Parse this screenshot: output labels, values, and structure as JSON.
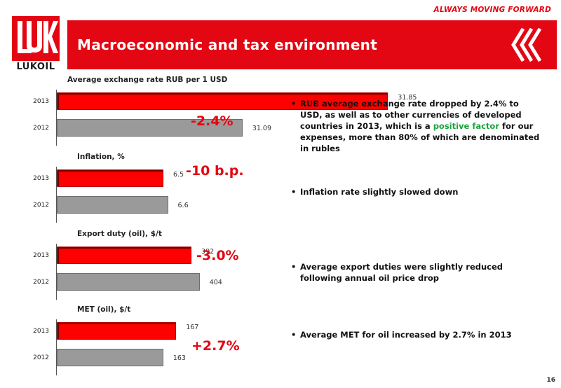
{
  "tagline": "ALWAYS MOVING FORWARD",
  "logo_text": "LUKOIL",
  "title": "Macroeconomic and tax environment",
  "page_number": "16",
  "colors": {
    "brand_red": "#e30613",
    "bar_2013": "#ff0000",
    "bar_2012": "#9a9a9a",
    "highlight_green": "#1aa33a"
  },
  "chart_data": [
    {
      "type": "bar",
      "orientation": "horizontal",
      "title": "Average exchange rate RUB per 1 USD",
      "categories": [
        "2013",
        "2012"
      ],
      "values": [
        31.85,
        31.09
      ],
      "value_labels": [
        "31.85",
        "31.09"
      ],
      "change_label": "-2.4%"
    },
    {
      "type": "bar",
      "orientation": "horizontal",
      "title": "Inflation, %",
      "categories": [
        "2013",
        "2012"
      ],
      "values": [
        6.5,
        6.6
      ],
      "value_labels": [
        "6.5",
        "6.6"
      ],
      "change_label": "-10 b.p."
    },
    {
      "type": "bar",
      "orientation": "horizontal",
      "title": "Export duty (oil), $/t",
      "categories": [
        "2013",
        "2012"
      ],
      "values": [
        392,
        404
      ],
      "value_labels": [
        "392",
        "404"
      ],
      "change_label": "-3.0%"
    },
    {
      "type": "bar",
      "orientation": "horizontal",
      "title": "MET (oil), $/t",
      "categories": [
        "2013",
        "2012"
      ],
      "values": [
        167,
        163
      ],
      "value_labels": [
        "167",
        "163"
      ],
      "change_label": "+2.7%"
    }
  ],
  "bullets": [
    {
      "pre": "RUB average exchange rate dropped by 2.4% to USD, as well as to other currencies of developed countries in 2013, which is a ",
      "highlight": "positive factor",
      "post": " for our expenses, more than 80% of which are denominated in rubles"
    },
    {
      "pre": "Inflation rate slightly slowed down",
      "highlight": "",
      "post": ""
    },
    {
      "pre": "Average export duties were slightly reduced following annual oil price drop",
      "highlight": "",
      "post": ""
    },
    {
      "pre": "Average MET for oil increased by 2.7% in 2013",
      "highlight": "",
      "post": ""
    }
  ]
}
